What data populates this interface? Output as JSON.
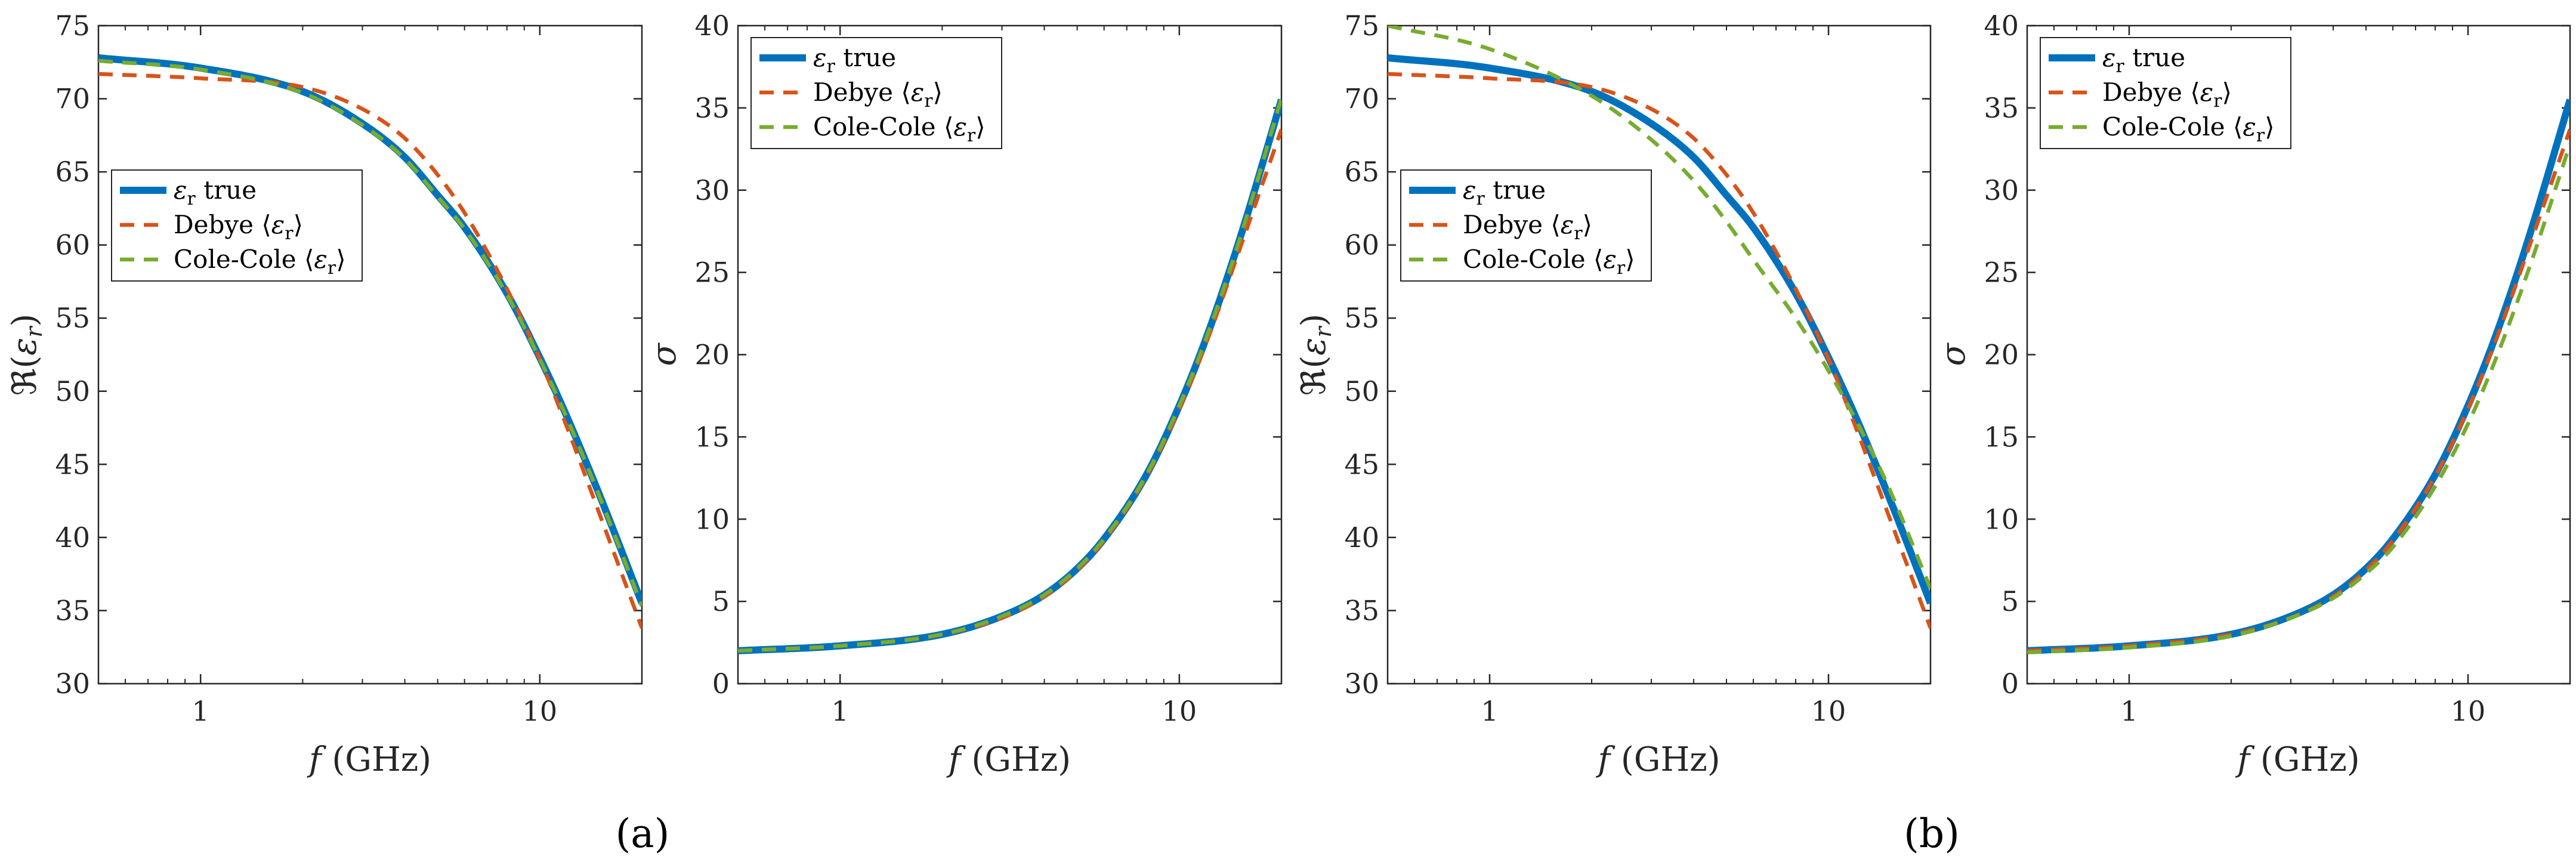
{
  "colors": {
    "true": "#0072BD",
    "debye": "#D95319",
    "colecole": "#77AC30",
    "axis": "#262626"
  },
  "panel_labels": {
    "a": "(a)",
    "b": "(b)"
  },
  "chart_data": [
    {
      "type": "line",
      "id": "a-real",
      "xscale": "log",
      "xlim": [
        0.5,
        20
      ],
      "ylim": [
        30,
        75
      ],
      "xticks": [
        1,
        10
      ],
      "xtick_labels": [
        "1",
        "10"
      ],
      "yticks": [
        30,
        35,
        40,
        45,
        50,
        55,
        60,
        65,
        70,
        75
      ],
      "xlabel": "f (GHz)",
      "ylabel": "ℜ(εr)",
      "legend": {
        "position": "center-left",
        "entries": [
          "εr true",
          "Debye ⟨εr⟩",
          "Cole-Cole ⟨εr⟩"
        ]
      },
      "x": [
        0.5,
        1,
        2,
        3,
        4,
        5,
        6,
        8,
        10,
        12,
        15,
        20
      ],
      "series": [
        {
          "name": "εr true",
          "style": "solid",
          "values": [
            72.8,
            72.1,
            70.5,
            68.3,
            66.0,
            63.4,
            61.2,
            56.7,
            52.3,
            48.3,
            42.9,
            35.5
          ]
        },
        {
          "name": "Debye ⟨εr⟩",
          "style": "dashed",
          "values": [
            71.7,
            71.4,
            70.8,
            69.3,
            67.3,
            64.8,
            62.2,
            57.0,
            52.2,
            47.6,
            41.6,
            33.8
          ]
        },
        {
          "name": "Cole-Cole ⟨εr⟩",
          "style": "dashed",
          "values": [
            72.6,
            72.0,
            70.4,
            68.2,
            65.9,
            63.3,
            61.1,
            56.6,
            52.2,
            48.2,
            42.8,
            35.3
          ]
        }
      ]
    },
    {
      "type": "line",
      "id": "a-sigma",
      "xscale": "log",
      "xlim": [
        0.5,
        20
      ],
      "ylim": [
        0,
        40
      ],
      "xticks": [
        1,
        10
      ],
      "xtick_labels": [
        "1",
        "10"
      ],
      "yticks": [
        0,
        5,
        10,
        15,
        20,
        25,
        30,
        35,
        40
      ],
      "xlabel": "f (GHz)",
      "ylabel": "σ",
      "legend": {
        "position": "top-left",
        "entries": [
          "εr true",
          "Debye ⟨εr⟩",
          "Cole-Cole ⟨εr⟩"
        ]
      },
      "x": [
        0.5,
        1,
        2,
        3,
        4,
        5,
        6,
        8,
        10,
        12,
        15,
        20
      ],
      "series": [
        {
          "name": "εr true",
          "style": "solid",
          "values": [
            2.0,
            2.3,
            3.0,
            4.1,
            5.4,
            7.0,
            8.8,
            12.7,
            16.9,
            21.0,
            26.9,
            35.5
          ]
        },
        {
          "name": "Debye ⟨εr⟩",
          "style": "dashed",
          "values": [
            2.0,
            2.3,
            3.0,
            4.0,
            5.3,
            6.9,
            8.7,
            12.6,
            16.7,
            20.7,
            26.3,
            33.7
          ]
        },
        {
          "name": "Cole-Cole ⟨εr⟩",
          "style": "dashed",
          "values": [
            2.0,
            2.3,
            3.0,
            4.1,
            5.4,
            7.0,
            8.8,
            12.7,
            16.9,
            21.0,
            26.9,
            35.6
          ]
        }
      ]
    },
    {
      "type": "line",
      "id": "b-real",
      "xscale": "log",
      "xlim": [
        0.5,
        20
      ],
      "ylim": [
        30,
        75
      ],
      "xticks": [
        1,
        10
      ],
      "xtick_labels": [
        "1",
        "10"
      ],
      "yticks": [
        30,
        35,
        40,
        45,
        50,
        55,
        60,
        65,
        70,
        75
      ],
      "xlabel": "f (GHz)",
      "ylabel": "ℜ(εr)",
      "legend": {
        "position": "center-left",
        "entries": [
          "εr true",
          "Debye ⟨εr⟩",
          "Cole-Cole ⟨εr⟩"
        ]
      },
      "x": [
        0.5,
        1,
        2,
        3,
        4,
        5,
        6,
        8,
        10,
        12,
        15,
        20
      ],
      "series": [
        {
          "name": "εr true",
          "style": "solid",
          "values": [
            72.8,
            72.1,
            70.5,
            68.3,
            66.0,
            63.4,
            61.2,
            56.7,
            52.3,
            48.3,
            42.9,
            35.5
          ]
        },
        {
          "name": "Debye ⟨εr⟩",
          "style": "dashed",
          "values": [
            71.7,
            71.4,
            70.8,
            69.3,
            67.3,
            64.8,
            62.2,
            57.0,
            52.2,
            47.6,
            41.6,
            33.8
          ]
        },
        {
          "name": "Cole-Cole ⟨εr⟩",
          "style": "dashed",
          "values": [
            75.0,
            73.4,
            70.2,
            67.2,
            64.4,
            61.6,
            59.0,
            55.0,
            51.4,
            48.1,
            43.5,
            36.5
          ]
        }
      ]
    },
    {
      "type": "line",
      "id": "b-sigma",
      "xscale": "log",
      "xlim": [
        0.5,
        20
      ],
      "ylim": [
        0,
        40
      ],
      "xticks": [
        1,
        10
      ],
      "xtick_labels": [
        "1",
        "10"
      ],
      "yticks": [
        0,
        5,
        10,
        15,
        20,
        25,
        30,
        35,
        40
      ],
      "xlabel": "f (GHz)",
      "ylabel": "σ",
      "legend": {
        "position": "top-left",
        "entries": [
          "εr true",
          "Debye ⟨εr⟩",
          "Cole-Cole ⟨εr⟩"
        ]
      },
      "x": [
        0.5,
        1,
        2,
        3,
        4,
        5,
        6,
        8,
        10,
        12,
        15,
        20
      ],
      "series": [
        {
          "name": "εr true",
          "style": "solid",
          "values": [
            2.0,
            2.3,
            3.0,
            4.1,
            5.4,
            7.0,
            8.8,
            12.7,
            16.9,
            21.0,
            26.9,
            35.5
          ]
        },
        {
          "name": "Debye ⟨εr⟩",
          "style": "dashed",
          "values": [
            2.0,
            2.3,
            3.0,
            4.0,
            5.3,
            6.9,
            8.7,
            12.6,
            16.7,
            20.7,
            26.3,
            33.7
          ]
        },
        {
          "name": "Cole-Cole ⟨εr⟩",
          "style": "dashed",
          "values": [
            1.9,
            2.2,
            2.9,
            4.0,
            5.2,
            6.7,
            8.3,
            12.0,
            15.8,
            19.6,
            25.0,
            32.8
          ]
        }
      ]
    }
  ]
}
